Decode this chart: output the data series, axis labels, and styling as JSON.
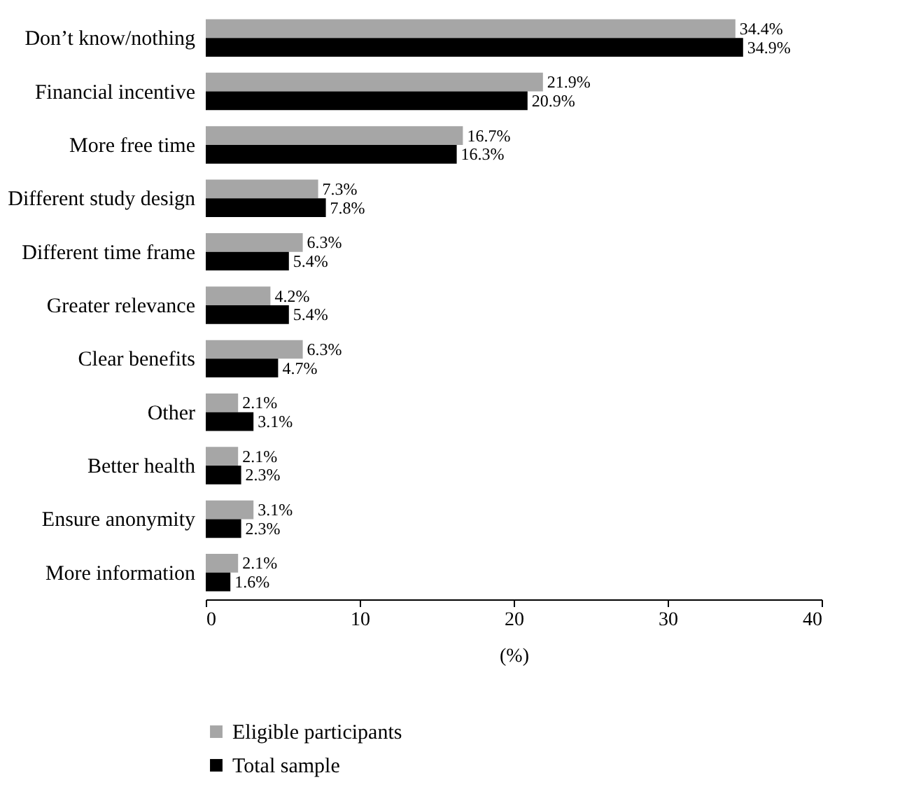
{
  "chart_data": {
    "type": "bar",
    "orientation": "horizontal",
    "xlabel": "(%)",
    "categories": [
      "Don’t know/nothing",
      "Financial incentive",
      "More free time",
      "Different study design",
      "Different time frame",
      "Greater relevance",
      "Clear benefits",
      "Other",
      "Better health",
      "Ensure anonymity",
      "More information"
    ],
    "series": [
      {
        "name": "Eligible participants",
        "color": "#a6a6a6",
        "values": [
          34.4,
          21.9,
          16.7,
          7.3,
          6.3,
          4.2,
          6.3,
          2.1,
          2.1,
          3.1,
          2.1
        ],
        "value_labels": [
          "34.4%",
          "21.9%",
          "16.7%",
          "7.3%",
          "6.3%",
          "4.2%",
          "6.3%",
          "2.1%",
          "2.1%",
          "3.1%",
          "2.1%"
        ]
      },
      {
        "name": "Total sample",
        "color": "#000000",
        "values": [
          34.9,
          20.9,
          16.3,
          7.8,
          5.4,
          5.4,
          4.7,
          3.1,
          2.3,
          2.3,
          1.6
        ],
        "value_labels": [
          "34.9%",
          "20.9%",
          "16.3%",
          "7.8%",
          "5.4%",
          "5.4%",
          "4.7%",
          "3.1%",
          "2.3%",
          "2.3%",
          "1.6%"
        ]
      }
    ],
    "xlim": [
      0,
      40
    ],
    "xticks": [
      0,
      10,
      20,
      30,
      40
    ],
    "grid": false,
    "legend": "bottom"
  }
}
